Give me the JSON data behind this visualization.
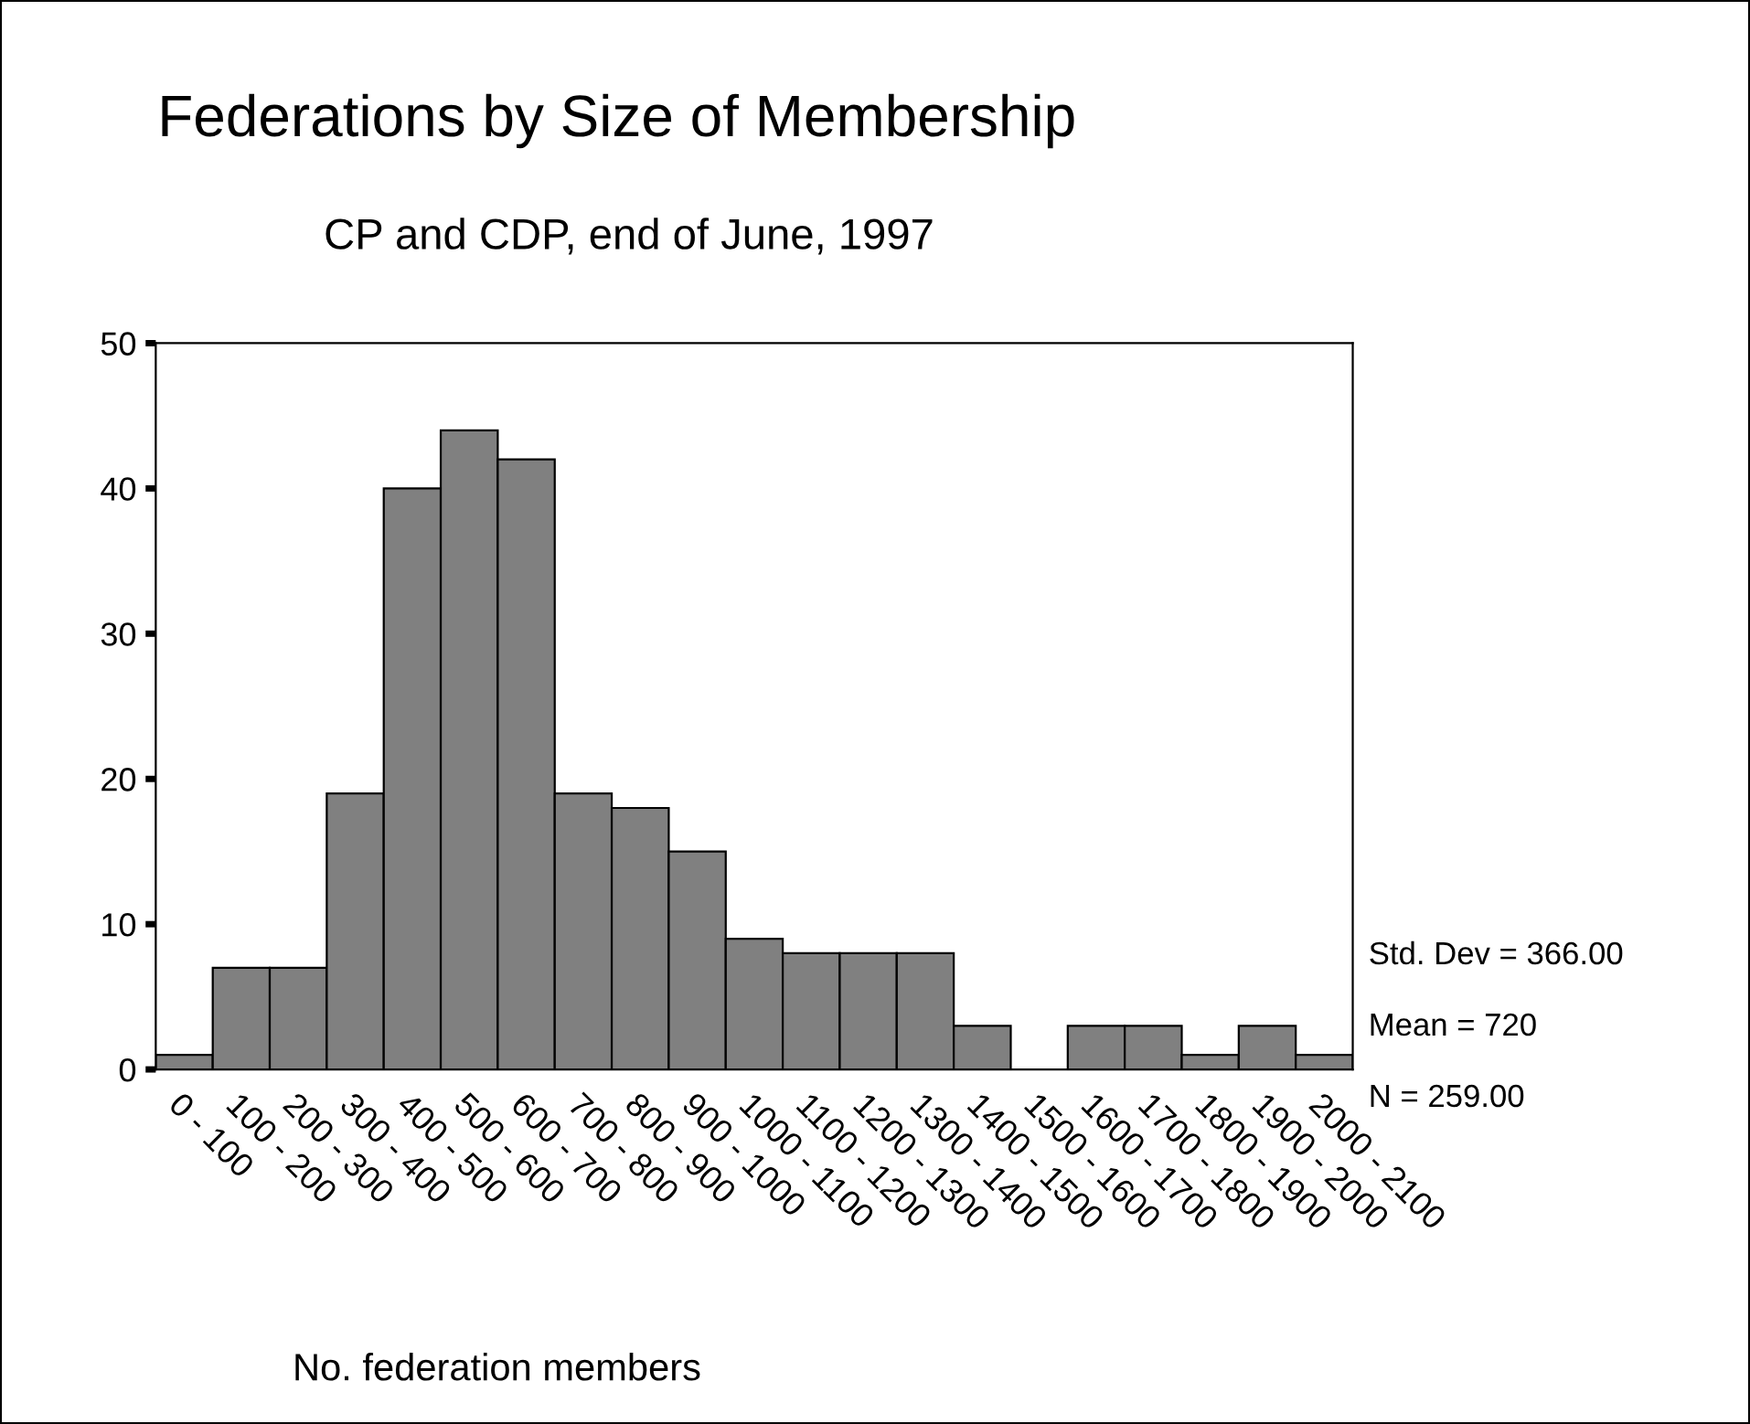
{
  "chart_data": {
    "type": "bar",
    "title": "Federations by Size of Membership",
    "subtitle": "CP and CDP, end of June, 1997",
    "xlabel": "No. federation members",
    "categories": [
      "0 - 100",
      "100 - 200",
      "200 - 300",
      "300 - 400",
      "400 - 500",
      "500 - 600",
      "600 - 700",
      "700 - 800",
      "800 - 900",
      "900 - 1000",
      "1000 - 1100",
      "1100 - 1200",
      "1200 - 1300",
      "1300 - 1400",
      "1400 - 1500",
      "1500 - 1600",
      "1600 - 1700",
      "1700 - 1800",
      "1800 - 1900",
      "1900 - 2000",
      "2000 - 2100"
    ],
    "values": [
      1,
      7,
      7,
      19,
      40,
      44,
      42,
      19,
      18,
      15,
      9,
      8,
      8,
      8,
      3,
      0,
      3,
      3,
      1,
      3,
      1
    ],
    "color": "#808080",
    "ylim": [
      0,
      50
    ],
    "yticks": [
      0,
      10,
      20,
      30,
      40,
      50
    ],
    "grid": false,
    "annotations": [
      "Std. Dev = 366.00",
      "Mean = 720",
      "N = 259.00"
    ]
  }
}
